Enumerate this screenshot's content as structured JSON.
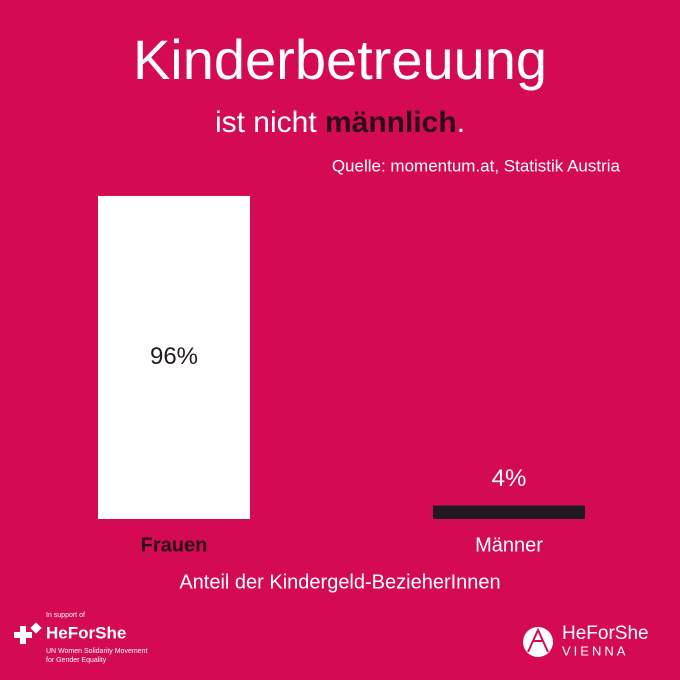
{
  "chart_data": {
    "type": "bar",
    "title": "Kinderbetreuung",
    "subtitle": {
      "lead": "ist nicht ",
      "emphasis": "männlich",
      "end": "."
    },
    "source": "Quelle: momentum.at, Statistik Austria",
    "categories": [
      "Frauen",
      "Männer"
    ],
    "values": [
      96,
      4
    ],
    "value_labels": [
      "96%",
      "4%"
    ],
    "colors": [
      "#ffffff",
      "#231a1f"
    ],
    "x_label": "Anteil der Kindergeld-BezieherInnen",
    "ylim": [
      0,
      100
    ]
  },
  "footer": {
    "left": {
      "support": "In support of",
      "brand": "HeForShe",
      "line1": "UN Women Solidarity Movement",
      "line2": "for Gender Equality"
    },
    "right": {
      "brand": "HeForShe",
      "city": "VIENNA"
    }
  }
}
